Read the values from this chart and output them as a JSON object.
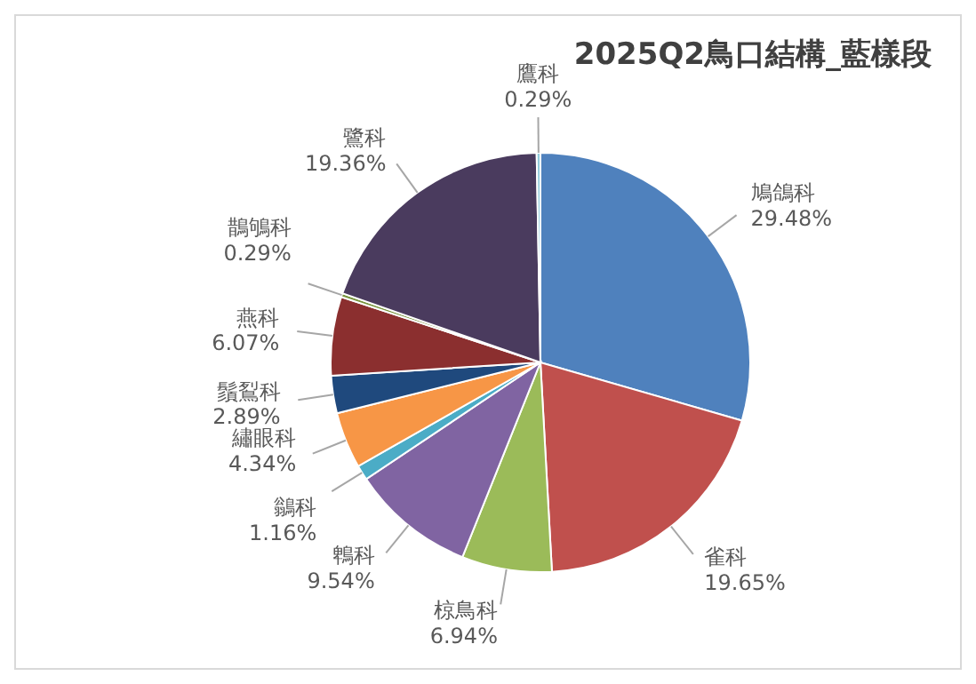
{
  "chart_data": {
    "type": "pie",
    "title": "2025Q2鳥口結構_藍樣段",
    "categories": [
      "鳩鴿科",
      "雀科",
      "椋鳥科",
      "鵯科",
      "鶲科",
      "繡眼科",
      "鬚鴷科",
      "燕科",
      "鵲鴝科",
      "鷺科",
      "鷹科"
    ],
    "values": [
      29.48,
      19.65,
      6.94,
      9.54,
      1.16,
      4.34,
      2.89,
      6.07,
      0.29,
      19.36,
      0.29
    ],
    "value_labels": [
      "29.48%",
      "19.65%",
      "6.94%",
      "9.54%",
      "1.16%",
      "4.34%",
      "2.89%",
      "6.07%",
      "0.29%",
      "19.36%",
      "0.29%"
    ],
    "colors": [
      "#4f81bd",
      "#c0504d",
      "#9bbb59",
      "#8064a2",
      "#4bacc6",
      "#f79646",
      "#1f497d",
      "#8b2f2f",
      "#77933c",
      "#4a3b5e",
      "#93cddd"
    ],
    "legend": false
  }
}
